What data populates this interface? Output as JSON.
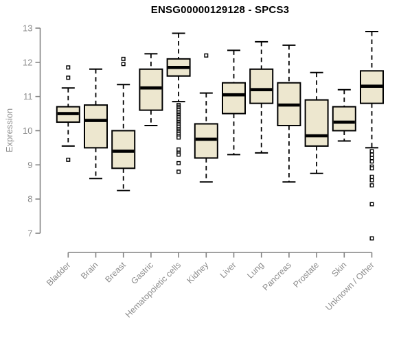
{
  "style": {
    "box_fill": "#ede7cf",
    "box_stroke": "#000000",
    "median_color": "#000000",
    "whisker_color": "#000000",
    "outlier_fill": "#ffffff",
    "axis_color": "#828282",
    "tick_label_color": "#8c8c8c",
    "title_color": "#000000",
    "background": "#ffffff"
  },
  "chart_data": {
    "type": "boxplot",
    "title": "ENSG00000129128 - SPCS3",
    "xlabel": "",
    "ylabel": "Expression",
    "ylim": [
      7,
      13
    ],
    "yticks": [
      7,
      8,
      9,
      10,
      11,
      12,
      13
    ],
    "grid": false,
    "legend": false,
    "categories": [
      "Bladder",
      "Brain",
      "Breast",
      "Gastric",
      "Hematopoietic cells",
      "Kidney",
      "Liver",
      "Lung",
      "Pancreas",
      "Prostate",
      "Skin",
      "Unknown / Other"
    ],
    "boxes": [
      {
        "name": "Bladder",
        "low": 9.55,
        "q1": 10.25,
        "median": 10.5,
        "q3": 10.7,
        "high": 11.25,
        "outliers": [
          11.85,
          11.55,
          9.15
        ]
      },
      {
        "name": "Brain",
        "low": 8.6,
        "q1": 9.5,
        "median": 10.3,
        "q3": 10.75,
        "high": 11.8,
        "outliers": []
      },
      {
        "name": "Breast",
        "low": 8.25,
        "q1": 8.9,
        "median": 9.4,
        "q3": 10.0,
        "high": 11.35,
        "outliers": [
          12.1,
          11.95
        ]
      },
      {
        "name": "Gastric",
        "low": 10.15,
        "q1": 10.6,
        "median": 11.25,
        "q3": 11.8,
        "high": 12.25,
        "outliers": []
      },
      {
        "name": "Hematopoietic cells",
        "low": 10.85,
        "q1": 11.6,
        "median": 11.85,
        "q3": 12.1,
        "high": 12.85,
        "outliers": [
          10.75,
          10.7,
          10.65,
          10.6,
          10.55,
          10.5,
          10.45,
          10.4,
          10.35,
          10.3,
          10.25,
          10.2,
          10.15,
          10.1,
          10.05,
          10.0,
          9.95,
          9.9,
          9.85,
          9.8,
          9.45,
          9.35,
          9.3,
          9.05,
          8.8
        ]
      },
      {
        "name": "Kidney",
        "low": 8.5,
        "q1": 9.2,
        "median": 9.75,
        "q3": 10.2,
        "high": 11.1,
        "outliers": [
          12.2
        ]
      },
      {
        "name": "Liver",
        "low": 9.3,
        "q1": 10.5,
        "median": 11.05,
        "q3": 11.4,
        "high": 12.35,
        "outliers": []
      },
      {
        "name": "Lung",
        "low": 9.35,
        "q1": 10.8,
        "median": 11.2,
        "q3": 11.8,
        "high": 12.6,
        "outliers": []
      },
      {
        "name": "Pancreas",
        "low": 8.5,
        "q1": 10.15,
        "median": 10.75,
        "q3": 11.4,
        "high": 12.5,
        "outliers": []
      },
      {
        "name": "Prostate",
        "low": 8.75,
        "q1": 9.55,
        "median": 9.85,
        "q3": 10.9,
        "high": 11.7,
        "outliers": []
      },
      {
        "name": "Skin",
        "low": 9.7,
        "q1": 10.0,
        "median": 10.25,
        "q3": 10.7,
        "high": 11.2,
        "outliers": []
      },
      {
        "name": "Unknown / Other",
        "low": 9.5,
        "q1": 10.8,
        "median": 11.3,
        "q3": 11.75,
        "high": 12.9,
        "outliers": [
          9.4,
          9.3,
          9.2,
          9.1,
          8.95,
          8.9,
          8.65,
          8.55,
          8.4,
          7.85,
          6.85
        ]
      }
    ]
  }
}
